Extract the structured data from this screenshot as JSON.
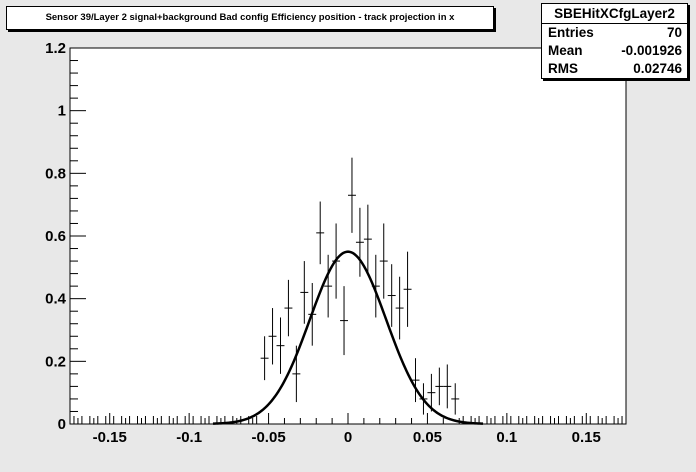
{
  "title": "Sensor 39/Layer 2 signal+background Bad config Efficiency position - track projection in x",
  "stats": {
    "name": "SBEHitXCfgLayer2",
    "rows": [
      {
        "label": "Entries",
        "value": "70"
      },
      {
        "label": "Mean",
        "value": "-0.001926"
      },
      {
        "label": "RMS",
        "value": "0.02746"
      }
    ]
  },
  "chart_data": {
    "type": "scatter",
    "title": "Sensor 39/Layer 2 signal+background Bad config Efficiency position - track projection in x",
    "xlabel": "",
    "ylabel": "",
    "xlim": [
      -0.175,
      0.175
    ],
    "ylim": [
      0,
      1.2
    ],
    "x_ticks": [
      -0.15,
      -0.1,
      -0.05,
      0,
      0.05,
      0.1,
      0.15
    ],
    "x_tick_labels": [
      "-0.15",
      "-0.1",
      "-0.05",
      "0",
      "0.05",
      "0.1",
      "0.15"
    ],
    "y_ticks": [
      0,
      0.2,
      0.4,
      0.6,
      0.8,
      1,
      1.2
    ],
    "y_tick_labels": [
      "0",
      "0.2",
      "0.4",
      "0.6",
      "0.8",
      "1",
      "1.2"
    ],
    "bin_width": 0.005,
    "series": [
      {
        "points": [
          {
            "x": -0.0525,
            "y": 0.21,
            "err": 0.07
          },
          {
            "x": -0.0475,
            "y": 0.28,
            "err": 0.09
          },
          {
            "x": -0.0425,
            "y": 0.25,
            "err": 0.09
          },
          {
            "x": -0.0375,
            "y": 0.37,
            "err": 0.09
          },
          {
            "x": -0.0325,
            "y": 0.16,
            "err": 0.09
          },
          {
            "x": -0.0275,
            "y": 0.42,
            "err": 0.1
          },
          {
            "x": -0.0225,
            "y": 0.35,
            "err": 0.1
          },
          {
            "x": -0.0175,
            "y": 0.61,
            "err": 0.1
          },
          {
            "x": -0.0125,
            "y": 0.44,
            "err": 0.1
          },
          {
            "x": -0.0075,
            "y": 0.52,
            "err": 0.12
          },
          {
            "x": -0.0025,
            "y": 0.33,
            "err": 0.11
          },
          {
            "x": 0.0025,
            "y": 0.73,
            "err": 0.12
          },
          {
            "x": 0.0075,
            "y": 0.58,
            "err": 0.11
          },
          {
            "x": 0.0125,
            "y": 0.59,
            "err": 0.11
          },
          {
            "x": 0.0175,
            "y": 0.44,
            "err": 0.1
          },
          {
            "x": 0.0225,
            "y": 0.52,
            "err": 0.12
          },
          {
            "x": 0.0275,
            "y": 0.41,
            "err": 0.1
          },
          {
            "x": 0.0325,
            "y": 0.37,
            "err": 0.1
          },
          {
            "x": 0.0375,
            "y": 0.43,
            "err": 0.12
          },
          {
            "x": 0.0425,
            "y": 0.14,
            "err": 0.07
          },
          {
            "x": 0.0475,
            "y": 0.08,
            "err": 0.05
          },
          {
            "x": 0.0525,
            "y": 0.1,
            "err": 0.06
          },
          {
            "x": 0.0575,
            "y": 0.12,
            "err": 0.06
          },
          {
            "x": 0.0625,
            "y": 0.12,
            "err": 0.07
          },
          {
            "x": 0.0675,
            "y": 0.08,
            "err": 0.05
          }
        ]
      }
    ],
    "fit": {
      "type": "gaussian",
      "amplitude": 0.55,
      "mean": 0.0,
      "sigma": 0.024
    },
    "grid": false,
    "legend": "top-right"
  }
}
